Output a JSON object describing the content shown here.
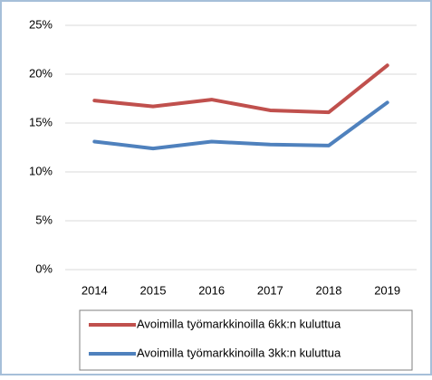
{
  "chart_data": {
    "type": "line",
    "categories": [
      "2014",
      "2015",
      "2016",
      "2017",
      "2018",
      "2019"
    ],
    "series": [
      {
        "name": "Avoimilla työmarkkinoilla 6kk:n kuluttua",
        "color": "#c0504d",
        "values": [
          17.3,
          16.7,
          17.4,
          16.3,
          16.1,
          20.9
        ]
      },
      {
        "name": "Avoimilla työmarkkinoilla 3kk:n kuluttua",
        "color": "#4f81bd",
        "values": [
          13.1,
          12.4,
          13.1,
          12.8,
          12.7,
          17.1
        ]
      }
    ],
    "ylim": [
      0,
      25
    ],
    "yticks": [
      {
        "value": 0,
        "label": "0%"
      },
      {
        "value": 5,
        "label": "5%"
      },
      {
        "value": 10,
        "label": "10%"
      },
      {
        "value": 15,
        "label": "15%"
      },
      {
        "value": 20,
        "label": "20%"
      },
      {
        "value": 25,
        "label": "25%"
      }
    ],
    "grid": true
  }
}
